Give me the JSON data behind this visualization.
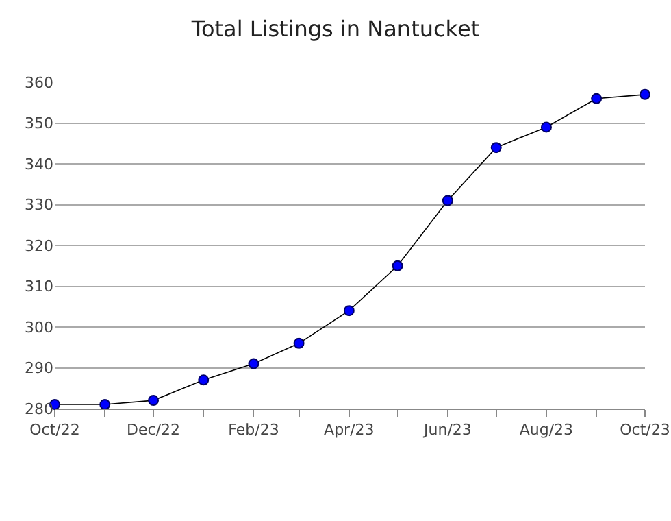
{
  "chart_data": {
    "type": "line",
    "title": "Total Listings in Nantucket",
    "x": [
      "2022-10",
      "2022-11",
      "2022-12",
      "2023-01",
      "2023-02",
      "2023-03",
      "2023-04",
      "2023-05",
      "2023-06",
      "2023-07",
      "2023-08",
      "2023-09",
      "2023-10"
    ],
    "series": [
      {
        "color": "#0000ff",
        "values": [
          281,
          281,
          282,
          287,
          291,
          296,
          304,
          315,
          331,
          344,
          349,
          356,
          357
        ]
      }
    ],
    "xlim": [
      "2022-10",
      "2023-10"
    ],
    "xticks": [
      {
        "value": "2022-10",
        "label": "Oct/22"
      },
      {
        "value": "2022-11",
        "label": null
      },
      {
        "value": "2022-12",
        "label": "Dec/22"
      },
      {
        "value": "2023-01",
        "label": null
      },
      {
        "value": "2023-02",
        "label": "Feb/23"
      },
      {
        "value": "2023-03",
        "label": null
      },
      {
        "value": "2023-04",
        "label": "Apr/23"
      },
      {
        "value": "2023-05",
        "label": null
      },
      {
        "value": "2023-06",
        "label": "Jun/23"
      },
      {
        "value": "2023-07",
        "label": null
      },
      {
        "value": "2023-08",
        "label": "Aug/23"
      },
      {
        "value": "2023-09",
        "label": null
      },
      {
        "value": "2023-10",
        "label": "Oct/23"
      }
    ],
    "ylim": [
      280,
      360
    ],
    "yticks": [
      280,
      290,
      300,
      310,
      320,
      330,
      340,
      350,
      360
    ],
    "grid": "y",
    "marker": "circle",
    "line_style": "solid"
  }
}
